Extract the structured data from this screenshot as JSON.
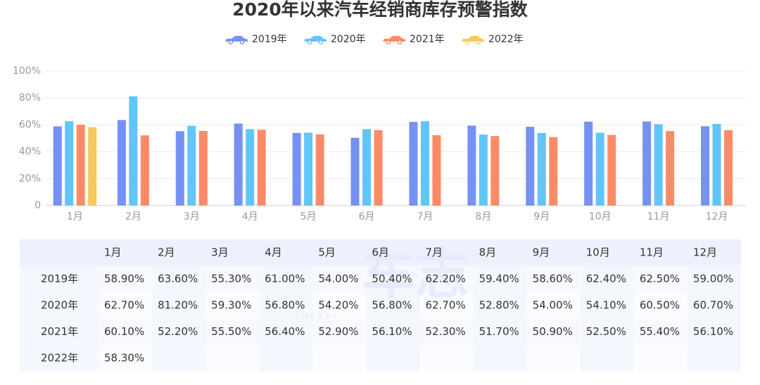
{
  "chart_data": {
    "type": "bar",
    "title": "2020年以来汽车经销商库存预警指数",
    "categories": [
      "1月",
      "2月",
      "3月",
      "4月",
      "5月",
      "6月",
      "7月",
      "8月",
      "9月",
      "10月",
      "11月",
      "12月"
    ],
    "series": [
      {
        "name": "2019年",
        "color": "#7591f3",
        "values": [
          58.9,
          63.6,
          55.3,
          61.0,
          54.0,
          50.4,
          62.2,
          59.4,
          58.6,
          62.4,
          62.5,
          59.0
        ],
        "value_labels": [
          "58.90%",
          "63.60%",
          "55.30%",
          "61.00%",
          "54.00%",
          "50.40%",
          "62.20%",
          "59.40%",
          "58.60%",
          "62.40%",
          "62.50%",
          "59.00%"
        ]
      },
      {
        "name": "2020年",
        "color": "#62c5f8",
        "values": [
          62.7,
          81.2,
          59.3,
          56.8,
          54.2,
          56.8,
          62.7,
          52.8,
          54.0,
          54.1,
          60.5,
          60.7
        ],
        "value_labels": [
          "62.70%",
          "81.20%",
          "59.30%",
          "56.80%",
          "54.20%",
          "56.80%",
          "62.70%",
          "52.80%",
          "54.00%",
          "54.10%",
          "60.50%",
          "60.70%"
        ]
      },
      {
        "name": "2021年",
        "color": "#fb8b66",
        "values": [
          60.1,
          52.2,
          55.5,
          56.4,
          52.9,
          56.1,
          52.3,
          51.7,
          50.9,
          52.5,
          55.4,
          56.1
        ],
        "value_labels": [
          "60.10%",
          "52.20%",
          "55.50%",
          "56.40%",
          "52.90%",
          "56.10%",
          "52.30%",
          "51.70%",
          "50.90%",
          "52.50%",
          "55.40%",
          "56.10%"
        ]
      },
      {
        "name": "2022年",
        "color": "#f7c95b",
        "values": [
          58.3,
          null,
          null,
          null,
          null,
          null,
          null,
          null,
          null,
          null,
          null,
          null
        ],
        "value_labels": [
          "58.30%",
          null,
          null,
          null,
          null,
          null,
          null,
          null,
          null,
          null,
          null,
          null
        ]
      }
    ],
    "ylim": [
      0,
      100
    ],
    "yticks": [
      0,
      {
        "value": 20,
        "label": "20%"
      },
      {
        "value": 40,
        "label": "40%"
      },
      {
        "value": 60,
        "label": "60%"
      },
      {
        "value": 80,
        "label": "80%"
      },
      {
        "value": 100,
        "label": "100%"
      }
    ],
    "grid": true
  },
  "watermark": {
    "text": "车志",
    "sub": "CHEZHI"
  }
}
